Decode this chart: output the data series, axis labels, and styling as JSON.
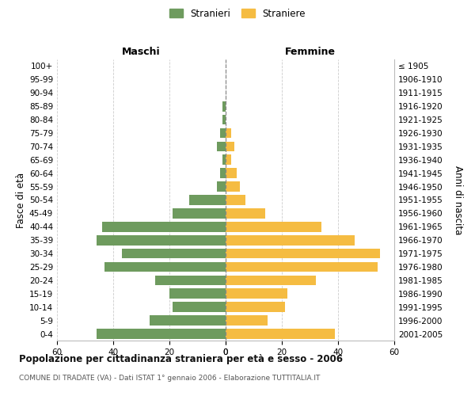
{
  "age_groups": [
    "0-4",
    "5-9",
    "10-14",
    "15-19",
    "20-24",
    "25-29",
    "30-34",
    "35-39",
    "40-44",
    "45-49",
    "50-54",
    "55-59",
    "60-64",
    "65-69",
    "70-74",
    "75-79",
    "80-84",
    "85-89",
    "90-94",
    "95-99",
    "100+"
  ],
  "birth_years": [
    "2001-2005",
    "1996-2000",
    "1991-1995",
    "1986-1990",
    "1981-1985",
    "1976-1980",
    "1971-1975",
    "1966-1970",
    "1961-1965",
    "1956-1960",
    "1951-1955",
    "1946-1950",
    "1941-1945",
    "1936-1940",
    "1931-1935",
    "1926-1930",
    "1921-1925",
    "1916-1920",
    "1911-1915",
    "1906-1910",
    "≤ 1905"
  ],
  "maschi": [
    46,
    27,
    19,
    20,
    25,
    43,
    37,
    46,
    44,
    19,
    13,
    3,
    2,
    1,
    3,
    2,
    1,
    1,
    0,
    0,
    0
  ],
  "femmine": [
    39,
    15,
    21,
    22,
    32,
    54,
    55,
    46,
    34,
    14,
    7,
    5,
    4,
    2,
    3,
    2,
    0,
    0,
    0,
    0,
    0
  ],
  "maschi_color": "#6e9b5e",
  "femmine_color": "#f5bc42",
  "background_color": "#ffffff",
  "grid_color": "#cccccc",
  "title": "Popolazione per cittadinanza straniera per età e sesso - 2006",
  "subtitle": "COMUNE DI TRADATE (VA) - Dati ISTAT 1° gennaio 2006 - Elaborazione TUTTITALIA.IT",
  "ylabel_left": "Fasce di età",
  "ylabel_right": "Anni di nascita",
  "xlabel_left": "Maschi",
  "xlabel_right": "Femmine",
  "legend_maschi": "Stranieri",
  "legend_femmine": "Straniere",
  "xlim": 60,
  "bar_height": 0.75
}
